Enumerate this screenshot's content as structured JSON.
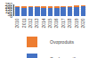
{
  "chart_data": {
    "type": "bar",
    "stacked": true,
    "categories": [
      "2010",
      "2011",
      "2012",
      "2013",
      "2014",
      "2015",
      "2016",
      "2017",
      "2018",
      "2019",
      "2020"
    ],
    "series": [
      {
        "name": "Oeufs coquille",
        "color": "#4472C4",
        "values": [
          195,
          190,
          195,
          195,
          185,
          185,
          190,
          195,
          200,
          205,
          215
        ]
      },
      {
        "name": "Ovoproduits",
        "color": "#ED7D31",
        "values": [
          35,
          38,
          35,
          33,
          30,
          28,
          30,
          28,
          28,
          27,
          30
        ]
      }
    ],
    "ylim": [
      0,
      260
    ],
    "yticks": [
      0,
      50,
      100,
      150,
      200,
      250
    ],
    "grid": true,
    "legend": "bottom"
  }
}
